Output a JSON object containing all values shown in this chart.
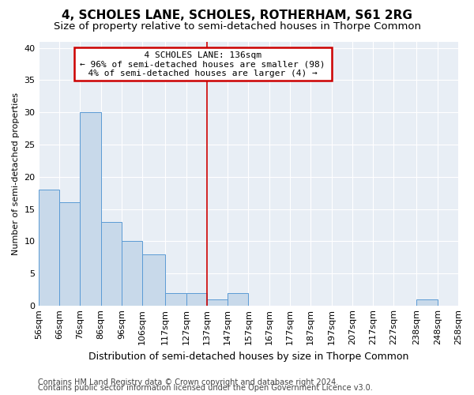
{
  "title": "4, SCHOLES LANE, SCHOLES, ROTHERHAM, S61 2RG",
  "subtitle": "Size of property relative to semi-detached houses in Thorpe Common",
  "xlabel": "Distribution of semi-detached houses by size in Thorpe Common",
  "ylabel": "Number of semi-detached properties",
  "footnote1": "Contains HM Land Registry data © Crown copyright and database right 2024.",
  "footnote2": "Contains public sector information licensed under the Open Government Licence v3.0.",
  "bar_color": "#c8d9ea",
  "bar_edge_color": "#5b9bd5",
  "vline_color": "#cc0000",
  "vline_value": 137,
  "annotation_title": "4 SCHOLES LANE: 136sqm",
  "annotation_line1": "← 96% of semi-detached houses are smaller (98)",
  "annotation_line2": "4% of semi-detached houses are larger (4) →",
  "annotation_box_color": "#cc0000",
  "bin_edges": [
    56,
    66,
    76,
    86,
    96,
    106,
    117,
    127,
    137,
    147,
    157,
    167,
    177,
    187,
    197,
    207,
    217,
    227,
    238,
    248,
    258
  ],
  "bar_heights": [
    18,
    16,
    30,
    13,
    10,
    8,
    2,
    2,
    1,
    2,
    0,
    0,
    0,
    0,
    0,
    0,
    0,
    0,
    1,
    0
  ],
  "ylim": [
    0,
    41
  ],
  "yticks": [
    0,
    5,
    10,
    15,
    20,
    25,
    30,
    35,
    40
  ],
  "background_color": "#ffffff",
  "plot_bg_color": "#e8eef5",
  "grid_color": "#ffffff",
  "title_fontsize": 11,
  "subtitle_fontsize": 9.5,
  "xlabel_fontsize": 9,
  "ylabel_fontsize": 8,
  "tick_fontsize": 8,
  "footnote_fontsize": 7
}
